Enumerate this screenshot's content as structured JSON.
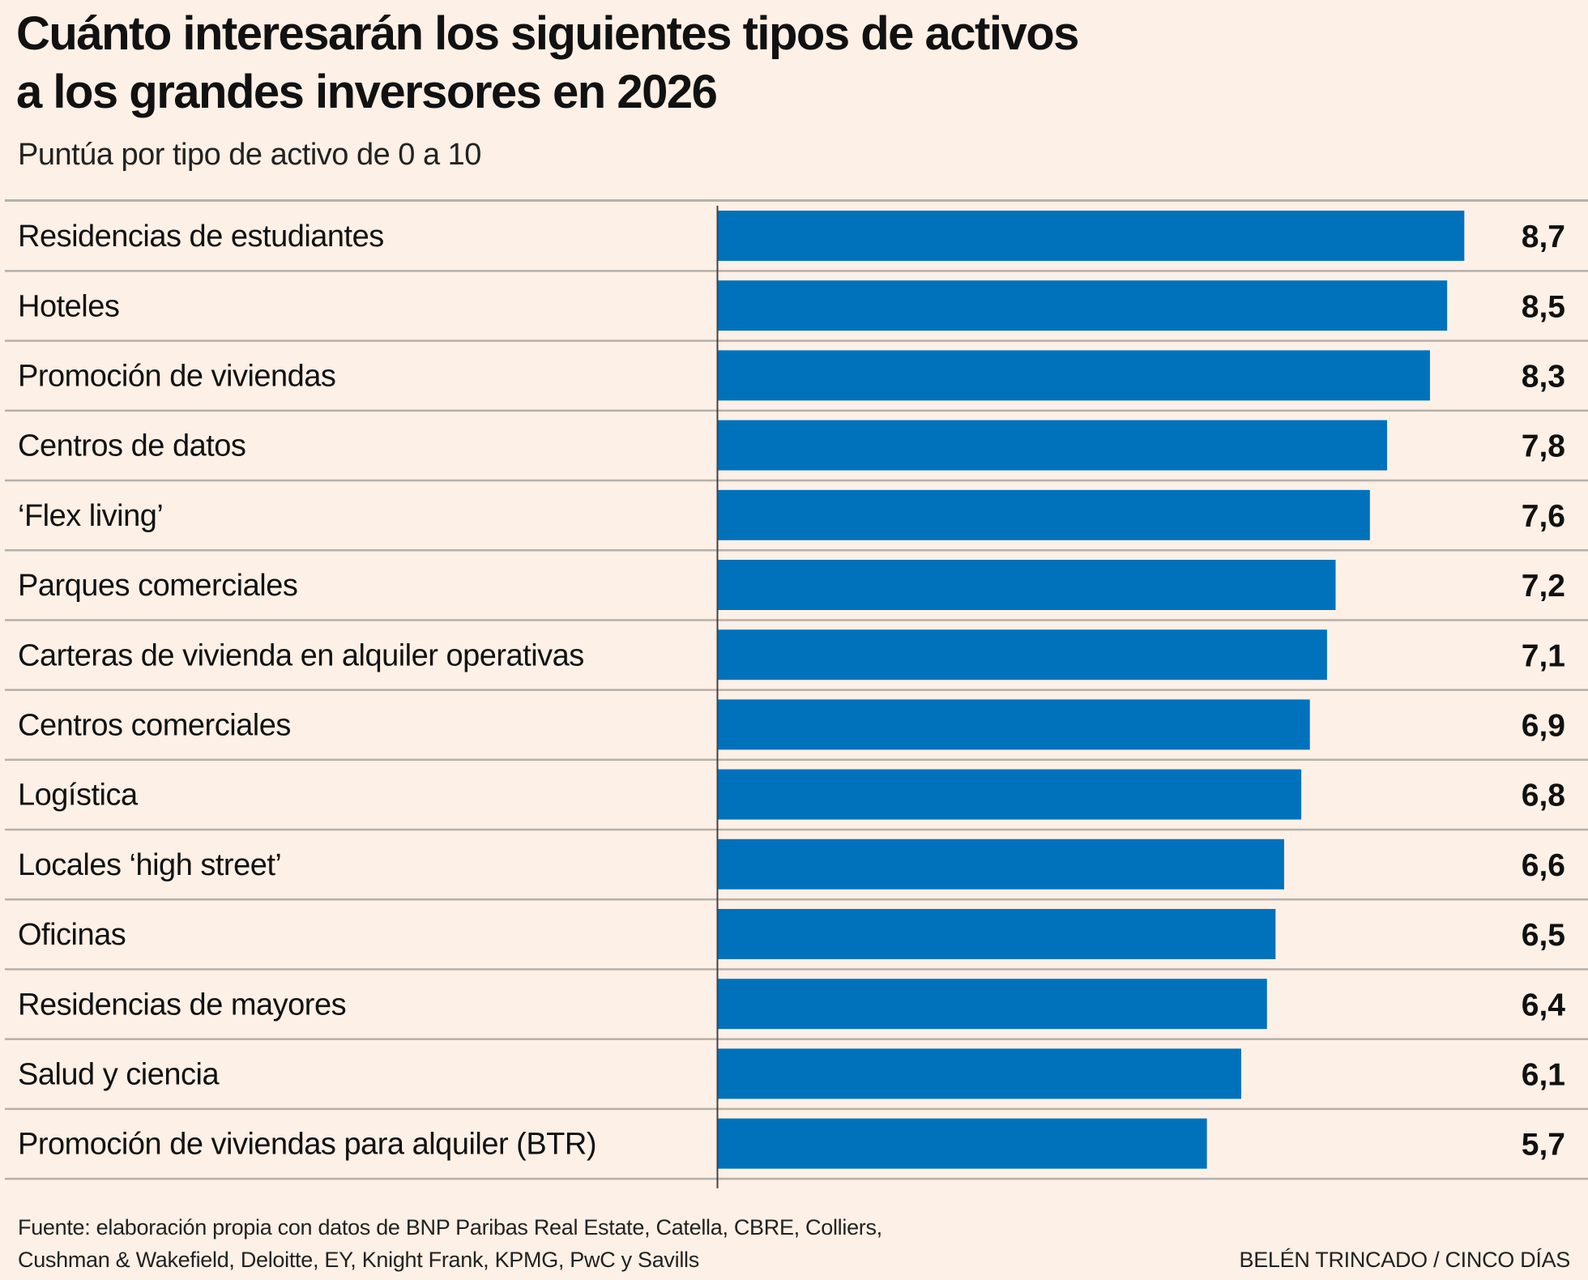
{
  "header": {
    "title_line1": "Cuánto interesarán los siguientes tipos de activos",
    "title_line2": "a los grandes inversores en 2026",
    "subtitle": "Puntúa por tipo de activo de 0 a 10"
  },
  "chart_data": {
    "type": "bar",
    "orientation": "horizontal",
    "title": "Cuánto interesarán los siguientes tipos de activos a los grandes inversores en 2026",
    "subtitle": "Puntúa por tipo de activo de 0 a 10",
    "categories": [
      "Residencias de estudiantes",
      "Hoteles",
      "Promoción de viviendas",
      "Centros de datos",
      "‘Flex living’",
      "Parques comerciales",
      "Carteras de vivienda en alquiler operativas",
      "Centros comerciales",
      "Logística",
      "Locales ‘high street’",
      "Oficinas",
      "Residencias de mayores",
      "Salud y ciencia",
      "Promoción de viviendas para alquiler (BTR)"
    ],
    "values": [
      8.7,
      8.5,
      8.3,
      7.8,
      7.6,
      7.2,
      7.1,
      6.9,
      6.8,
      6.6,
      6.5,
      6.4,
      6.1,
      5.7
    ],
    "value_labels": [
      "8,7",
      "8,5",
      "8,3",
      "7,8",
      "7,6",
      "7,2",
      "7,1",
      "6,9",
      "6,8",
      "6,6",
      "6,5",
      "6,4",
      "6,1",
      "5,7"
    ],
    "xlim": [
      0,
      10
    ],
    "grid": false,
    "legend": "none",
    "colors": {
      "bar": "#0072bc",
      "background": "#fdf0e6",
      "rule": "#b5b0ab"
    }
  },
  "footer": {
    "source_line1": "Fuente: elaboración propia con datos de BNP Paribas Real Estate, Catella, CBRE, Colliers,",
    "source_line2": "Cushman & Wakefield, Deloitte, EY, Knight Frank, KPMG, PwC y Savills",
    "credit": "BELÉN TRINCADO / CINCO DÍAS"
  }
}
